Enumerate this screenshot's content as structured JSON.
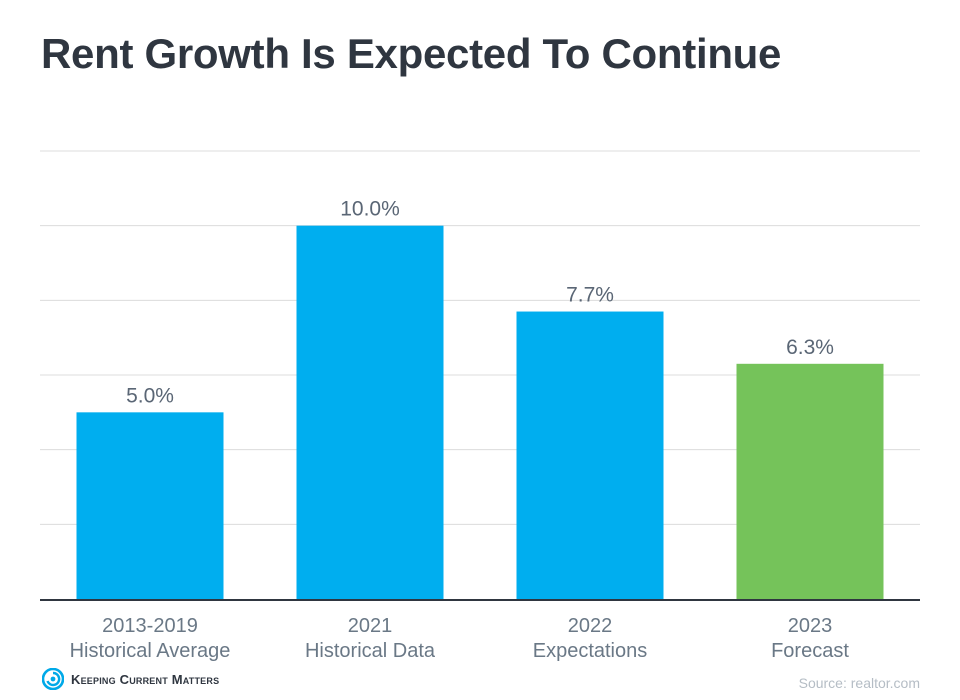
{
  "title": "Rent Growth Is Expected To Continue",
  "brand": {
    "name": "Keeping Current Matters",
    "icon": "swirl-logo-icon",
    "color": "#00a9e8"
  },
  "source": "Source: realtor.com",
  "colors": {
    "primary_bar": "#00aeef",
    "highlight_bar": "#75c35a",
    "baseline": "#2f3640",
    "grid": "#dcdcdc",
    "label": "#5a6675"
  },
  "chart_data": {
    "type": "bar",
    "title": "Rent Growth Is Expected To Continue",
    "xlabel": "",
    "ylabel": "",
    "categories": [
      [
        "2013-2019",
        "Historical Average"
      ],
      [
        "2021",
        "Historical Data"
      ],
      [
        "2022",
        "Expectations"
      ],
      [
        "2023",
        "Forecast"
      ]
    ],
    "values": [
      5.0,
      10.0,
      7.7,
      6.3
    ],
    "value_labels": [
      "5.0%",
      "10.0%",
      "7.7%",
      "6.3%"
    ],
    "bar_colors": [
      "#00aeef",
      "#00aeef",
      "#00aeef",
      "#75c35a"
    ],
    "ylim": [
      0,
      12
    ],
    "gridlines": [
      2,
      4,
      6,
      8,
      10,
      12
    ],
    "grid": true,
    "legend": "none",
    "y_tick_labels_shown": false
  }
}
